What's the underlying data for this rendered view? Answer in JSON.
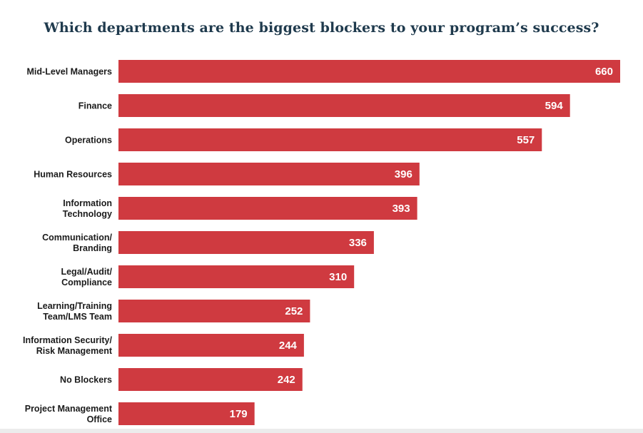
{
  "chart_data": {
    "type": "bar",
    "orientation": "horizontal",
    "title": "Which departments are the biggest blockers to your program’s success?",
    "categories": [
      [
        "Mid-Level Managers"
      ],
      [
        "Finance"
      ],
      [
        "Operations"
      ],
      [
        "Human Resources"
      ],
      [
        "Information",
        "Technology"
      ],
      [
        "Communication/",
        "Branding"
      ],
      [
        "Legal/Audit/",
        "Compliance"
      ],
      [
        "Learning/Training",
        "Team/LMS Team"
      ],
      [
        "Information Security/",
        "Risk Management"
      ],
      [
        "No Blockers"
      ],
      [
        "Project Management",
        "Office"
      ]
    ],
    "values": [
      660,
      594,
      557,
      396,
      393,
      336,
      310,
      252,
      244,
      242,
      179
    ],
    "xlim": [
      0,
      660
    ],
    "bar_color": "#cf3a40",
    "grid": false,
    "legend": "none"
  }
}
